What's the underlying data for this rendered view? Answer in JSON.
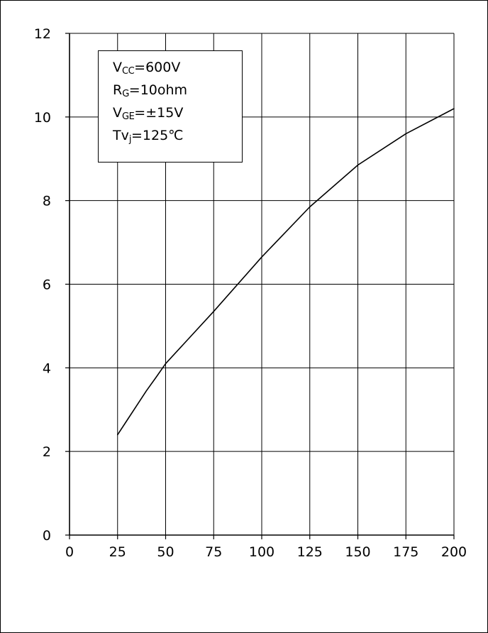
{
  "chart_data": {
    "type": "line",
    "title": "",
    "xlabel": "",
    "ylabel": "",
    "xlim": [
      0,
      200
    ],
    "ylim": [
      0,
      12
    ],
    "xticks": [
      0,
      25,
      50,
      75,
      100,
      125,
      150,
      175,
      200
    ],
    "yticks": [
      0,
      2,
      4,
      6,
      8,
      10,
      12
    ],
    "grid": true,
    "series": [
      {
        "x": [
          25,
          30,
          35,
          40,
          45,
          50,
          60,
          75,
          100,
          125,
          150,
          175,
          200
        ],
        "y": [
          2.4,
          2.75,
          3.1,
          3.45,
          3.77,
          4.1,
          4.6,
          5.35,
          6.65,
          7.85,
          8.85,
          9.6,
          10.2
        ]
      }
    ],
    "annotation": {
      "vcc": {
        "main": "V",
        "sub": "CC",
        "rest": "=600V"
      },
      "rg": {
        "main": "R",
        "sub": "G",
        "rest": "=10ohm"
      },
      "vge": {
        "main": "V",
        "sub": "GE",
        "rest": "=±15V"
      },
      "tvj": {
        "main": "Tv",
        "sub": "j",
        "rest": "=125℃"
      }
    },
    "colors": {
      "line": "#000000",
      "grid": "#000000",
      "background": "#ffffff"
    }
  }
}
